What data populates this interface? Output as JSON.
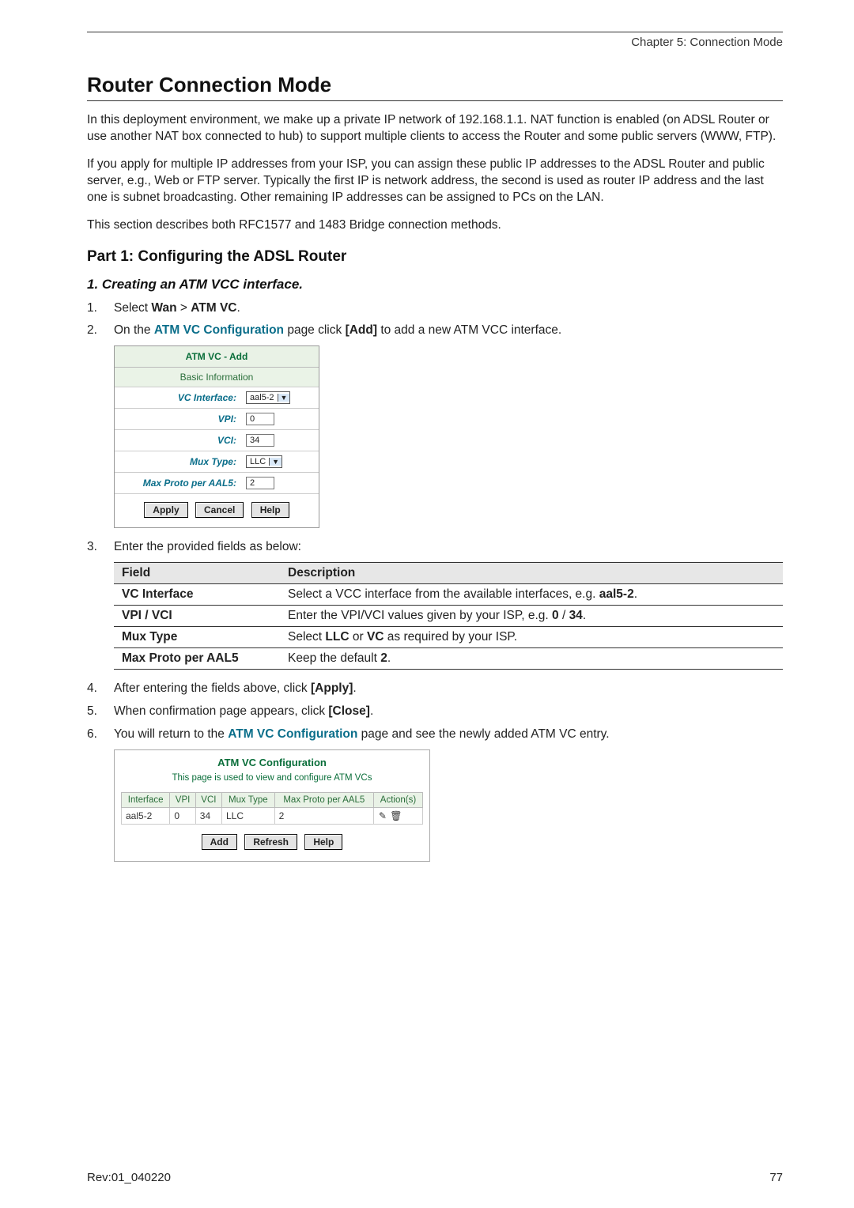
{
  "header": {
    "chapter": "Chapter 5: Connection Mode"
  },
  "title": "Router Connection Mode",
  "intro_p1": "In this deployment environment, we make up a private IP network of 192.168.1.1. NAT function is enabled (on ADSL Router or use another NAT box connected to hub) to support multiple clients to access the Router and some public servers (WWW, FTP).",
  "intro_p2": "If you apply for multiple IP addresses from your ISP, you can assign these public IP addresses to the ADSL Router and public server, e.g., Web or FTP server. Typically the first IP is network address, the second is used as router IP address and the last one is subnet broadcasting. Other remaining IP addresses can be assigned to PCs on the LAN.",
  "intro_p3": "This section describes both RFC1577 and 1483 Bridge connection methods.",
  "part1_title": "Part 1: Configuring the ADSL Router",
  "sub1_title": "1. Creating an ATM VCC interface.",
  "steps": {
    "s1_pre": "Select ",
    "s1_b1": "Wan",
    "s1_gt": " > ",
    "s1_b2": "ATM VC",
    "s1_post": ".",
    "s2_pre": "On the ",
    "s2_link": "ATM VC Configuration",
    "s2_mid": " page click ",
    "s2_b": "[Add]",
    "s2_post": " to add a new ATM VCC interface.",
    "s3_text": "Enter the provided fields as below:",
    "s4_pre": "After entering the fields above, click ",
    "s4_b": "[Apply]",
    "s4_post": ".",
    "s5_pre": "When confirmation page appears, click ",
    "s5_b": "[Close]",
    "s5_post": ".",
    "s6_pre": "You will return to the ",
    "s6_link": "ATM VC Configuration",
    "s6_post": " page and see the newly added ATM VC entry."
  },
  "atm_add": {
    "title": "ATM VC - Add",
    "section": "Basic Information",
    "rows": {
      "vc_interface_lbl": "VC Interface:",
      "vc_interface_val": "aal5-2",
      "vpi_lbl": "VPI:",
      "vpi_val": "0",
      "vci_lbl": "VCI:",
      "vci_val": "34",
      "mux_lbl": "Mux Type:",
      "mux_val": "LLC",
      "max_lbl": "Max Proto per AAL5:",
      "max_val": "2"
    },
    "buttons": {
      "apply": "Apply",
      "cancel": "Cancel",
      "help": "Help"
    }
  },
  "fdtable": {
    "h_field": "Field",
    "h_desc": "Description",
    "r1_f": "VC Interface",
    "r1_d_pre": "Select a VCC interface from the available interfaces, e.g. ",
    "r1_d_b": "aal5-2",
    "r1_d_post": ".",
    "r2_f": "VPI / VCI",
    "r2_d_pre": "Enter the VPI/VCI values given by your ISP, e.g. ",
    "r2_d_b1": "0",
    "r2_d_mid": " / ",
    "r2_d_b2": "34",
    "r2_d_post": ".",
    "r3_f": "Mux Type",
    "r3_d_pre": "Select ",
    "r3_d_b1": "LLC",
    "r3_d_mid": " or ",
    "r3_d_b2": "VC",
    "r3_d_post": " as required by your ISP.",
    "r4_f": "Max Proto per AAL5",
    "r4_d_pre": "Keep the default ",
    "r4_d_b": "2",
    "r4_d_post": "."
  },
  "atm_cfg": {
    "title": "ATM VC Configuration",
    "note": "This page is used to view and configure ATM VCs",
    "headers": [
      "Interface",
      "VPI",
      "VCI",
      "Mux Type",
      "Max Proto per AAL5",
      "Action(s)"
    ],
    "row": [
      "aal5-2",
      "0",
      "34",
      "LLC",
      "2"
    ],
    "icons": {
      "edit": "✎",
      "trash": "🗑"
    },
    "buttons": {
      "add": "Add",
      "refresh": "Refresh",
      "help": "Help"
    }
  },
  "footer": {
    "rev": "Rev:01_040220",
    "page": "77"
  }
}
